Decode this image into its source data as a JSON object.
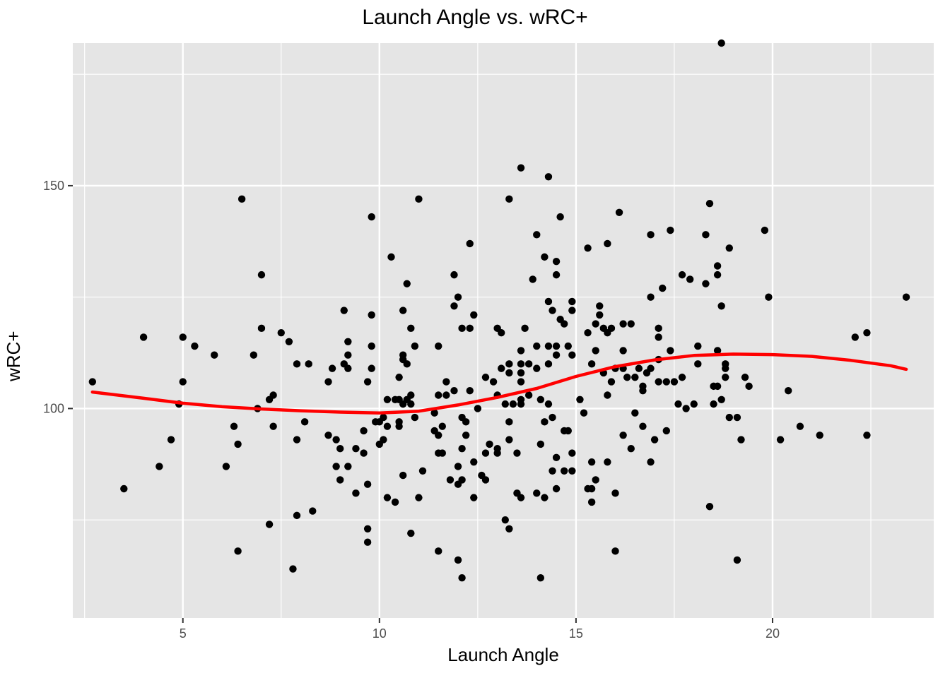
{
  "chart_data": {
    "type": "scatter",
    "title": "Launch Angle vs. wRC+",
    "xlabel": "Launch Angle",
    "ylabel": "wRC+",
    "xlim": [
      2.2,
      24.1
    ],
    "ylim": [
      53,
      182
    ],
    "x_ticks": [
      5,
      10,
      15,
      20
    ],
    "x_tick_labels": [
      "5",
      "10",
      "15",
      "20"
    ],
    "x_minor_ticks": [
      2.5,
      7.5,
      12.5,
      17.5,
      22.5
    ],
    "y_ticks": [
      100,
      150
    ],
    "y_tick_labels": [
      "100",
      "150"
    ],
    "y_minor_ticks": [
      75,
      125,
      175
    ],
    "grid": true,
    "point_color": "#000000",
    "smooth_color": "#ff0000",
    "panel_color": "#e5e5e5",
    "points": [
      [
        2.7,
        106
      ],
      [
        3.5,
        82
      ],
      [
        4.0,
        116
      ],
      [
        4.4,
        87
      ],
      [
        4.7,
        93
      ],
      [
        4.9,
        101
      ],
      [
        5.0,
        106
      ],
      [
        5.0,
        116
      ],
      [
        5.3,
        114
      ],
      [
        5.8,
        112
      ],
      [
        6.1,
        87
      ],
      [
        6.3,
        96
      ],
      [
        6.4,
        92
      ],
      [
        6.4,
        68
      ],
      [
        6.5,
        147
      ],
      [
        6.8,
        112
      ],
      [
        6.9,
        100
      ],
      [
        7.0,
        130
      ],
      [
        7.0,
        118
      ],
      [
        7.2,
        102
      ],
      [
        7.2,
        74
      ],
      [
        7.3,
        103
      ],
      [
        7.3,
        96
      ],
      [
        7.5,
        117
      ],
      [
        7.7,
        115
      ],
      [
        7.8,
        64
      ],
      [
        7.9,
        110
      ],
      [
        7.9,
        93
      ],
      [
        7.9,
        76
      ],
      [
        8.1,
        97
      ],
      [
        8.2,
        110
      ],
      [
        8.3,
        77
      ],
      [
        8.7,
        106
      ],
      [
        8.7,
        94
      ],
      [
        8.8,
        109
      ],
      [
        8.9,
        93
      ],
      [
        8.9,
        87
      ],
      [
        9.0,
        91
      ],
      [
        9.0,
        84
      ],
      [
        9.1,
        122
      ],
      [
        9.1,
        110
      ],
      [
        9.2,
        115
      ],
      [
        9.2,
        112
      ],
      [
        9.2,
        109
      ],
      [
        9.2,
        87
      ],
      [
        9.4,
        91
      ],
      [
        9.4,
        81
      ],
      [
        9.6,
        95
      ],
      [
        9.6,
        90
      ],
      [
        9.7,
        106
      ],
      [
        9.7,
        83
      ],
      [
        9.7,
        73
      ],
      [
        9.7,
        70
      ],
      [
        9.8,
        143
      ],
      [
        9.8,
        121
      ],
      [
        9.8,
        114
      ],
      [
        9.8,
        109
      ],
      [
        9.9,
        97
      ],
      [
        10.0,
        97
      ],
      [
        10.0,
        92
      ],
      [
        10.1,
        98
      ],
      [
        10.1,
        93
      ],
      [
        10.2,
        102
      ],
      [
        10.2,
        96
      ],
      [
        10.2,
        80
      ],
      [
        10.3,
        134
      ],
      [
        10.4,
        102
      ],
      [
        10.4,
        79
      ],
      [
        10.5,
        107
      ],
      [
        10.5,
        102
      ],
      [
        10.5,
        97
      ],
      [
        10.5,
        96
      ],
      [
        10.6,
        122
      ],
      [
        10.6,
        112
      ],
      [
        10.6,
        111
      ],
      [
        10.6,
        101
      ],
      [
        10.6,
        85
      ],
      [
        10.7,
        128
      ],
      [
        10.7,
        110
      ],
      [
        10.7,
        102
      ],
      [
        10.8,
        118
      ],
      [
        10.8,
        103
      ],
      [
        10.8,
        101
      ],
      [
        10.8,
        72
      ],
      [
        10.9,
        114
      ],
      [
        10.9,
        98
      ],
      [
        11.0,
        147
      ],
      [
        11.0,
        80
      ],
      [
        11.1,
        86
      ],
      [
        11.4,
        95
      ],
      [
        11.4,
        99
      ],
      [
        11.5,
        114
      ],
      [
        11.5,
        103
      ],
      [
        11.5,
        94
      ],
      [
        11.5,
        90
      ],
      [
        11.5,
        68
      ],
      [
        11.6,
        96
      ],
      [
        11.6,
        90
      ],
      [
        11.7,
        106
      ],
      [
        11.7,
        103
      ],
      [
        11.8,
        84
      ],
      [
        11.9,
        130
      ],
      [
        11.9,
        123
      ],
      [
        11.9,
        104
      ],
      [
        12.0,
        125
      ],
      [
        12.0,
        87
      ],
      [
        12.0,
        83
      ],
      [
        12.0,
        66
      ],
      [
        12.1,
        118
      ],
      [
        12.1,
        98
      ],
      [
        12.1,
        91
      ],
      [
        12.1,
        84
      ],
      [
        12.1,
        62
      ],
      [
        12.2,
        97
      ],
      [
        12.2,
        94
      ],
      [
        12.3,
        137
      ],
      [
        12.3,
        118
      ],
      [
        12.3,
        104
      ],
      [
        12.4,
        121
      ],
      [
        12.4,
        88
      ],
      [
        12.4,
        80
      ],
      [
        12.5,
        100
      ],
      [
        12.6,
        85
      ],
      [
        12.7,
        107
      ],
      [
        12.7,
        90
      ],
      [
        12.7,
        84
      ],
      [
        12.8,
        92
      ],
      [
        12.9,
        106
      ],
      [
        13.0,
        118
      ],
      [
        13.0,
        103
      ],
      [
        13.0,
        91
      ],
      [
        13.0,
        90
      ],
      [
        13.1,
        117
      ],
      [
        13.1,
        109
      ],
      [
        13.2,
        101
      ],
      [
        13.2,
        75
      ],
      [
        13.3,
        147
      ],
      [
        13.3,
        110
      ],
      [
        13.3,
        108
      ],
      [
        13.3,
        97
      ],
      [
        13.3,
        93
      ],
      [
        13.3,
        73
      ],
      [
        13.4,
        101
      ],
      [
        13.5,
        90
      ],
      [
        13.5,
        81
      ],
      [
        13.6,
        154
      ],
      [
        13.6,
        113
      ],
      [
        13.6,
        110
      ],
      [
        13.6,
        108
      ],
      [
        13.6,
        106
      ],
      [
        13.6,
        102
      ],
      [
        13.6,
        101
      ],
      [
        13.6,
        80
      ],
      [
        13.7,
        118
      ],
      [
        13.8,
        110
      ],
      [
        13.8,
        103
      ],
      [
        13.9,
        129
      ],
      [
        14.0,
        139
      ],
      [
        14.0,
        114
      ],
      [
        14.0,
        109
      ],
      [
        14.0,
        81
      ],
      [
        14.1,
        102
      ],
      [
        14.1,
        92
      ],
      [
        14.1,
        62
      ],
      [
        14.2,
        134
      ],
      [
        14.2,
        97
      ],
      [
        14.2,
        80
      ],
      [
        14.3,
        152
      ],
      [
        14.3,
        124
      ],
      [
        14.3,
        114
      ],
      [
        14.3,
        110
      ],
      [
        14.3,
        101
      ],
      [
        14.4,
        122
      ],
      [
        14.4,
        98
      ],
      [
        14.4,
        86
      ],
      [
        14.5,
        133
      ],
      [
        14.5,
        130
      ],
      [
        14.5,
        114
      ],
      [
        14.5,
        112
      ],
      [
        14.5,
        89
      ],
      [
        14.5,
        82
      ],
      [
        14.6,
        143
      ],
      [
        14.6,
        120
      ],
      [
        14.7,
        119
      ],
      [
        14.7,
        95
      ],
      [
        14.7,
        86
      ],
      [
        14.8,
        114
      ],
      [
        14.8,
        95
      ],
      [
        14.9,
        124
      ],
      [
        14.9,
        122
      ],
      [
        14.9,
        112
      ],
      [
        14.9,
        90
      ],
      [
        14.9,
        86
      ],
      [
        15.1,
        102
      ],
      [
        15.2,
        99
      ],
      [
        15.3,
        136
      ],
      [
        15.3,
        117
      ],
      [
        15.3,
        82
      ],
      [
        15.4,
        110
      ],
      [
        15.4,
        88
      ],
      [
        15.4,
        82
      ],
      [
        15.4,
        79
      ],
      [
        15.5,
        119
      ],
      [
        15.5,
        113
      ],
      [
        15.5,
        84
      ],
      [
        15.6,
        123
      ],
      [
        15.6,
        121
      ],
      [
        15.7,
        118
      ],
      [
        15.7,
        108
      ],
      [
        15.8,
        137
      ],
      [
        15.8,
        117
      ],
      [
        15.8,
        103
      ],
      [
        15.8,
        88
      ],
      [
        15.9,
        118
      ],
      [
        15.9,
        106
      ],
      [
        16.0,
        109
      ],
      [
        16.0,
        81
      ],
      [
        16.0,
        68
      ],
      [
        16.1,
        144
      ],
      [
        16.2,
        119
      ],
      [
        16.2,
        113
      ],
      [
        16.2,
        109
      ],
      [
        16.2,
        94
      ],
      [
        16.3,
        107
      ],
      [
        16.4,
        119
      ],
      [
        16.4,
        91
      ],
      [
        16.5,
        107
      ],
      [
        16.5,
        99
      ],
      [
        16.6,
        109
      ],
      [
        16.7,
        105
      ],
      [
        16.7,
        104
      ],
      [
        16.7,
        96
      ],
      [
        16.8,
        108
      ],
      [
        16.9,
        139
      ],
      [
        16.9,
        125
      ],
      [
        16.9,
        109
      ],
      [
        16.9,
        88
      ],
      [
        17.0,
        93
      ],
      [
        17.1,
        118
      ],
      [
        17.1,
        116
      ],
      [
        17.1,
        111
      ],
      [
        17.1,
        106
      ],
      [
        17.2,
        127
      ],
      [
        17.3,
        106
      ],
      [
        17.3,
        95
      ],
      [
        17.4,
        140
      ],
      [
        17.4,
        113
      ],
      [
        17.5,
        106
      ],
      [
        17.6,
        101
      ],
      [
        17.7,
        130
      ],
      [
        17.7,
        107
      ],
      [
        17.8,
        100
      ],
      [
        17.9,
        129
      ],
      [
        18.0,
        101
      ],
      [
        18.1,
        114
      ],
      [
        18.1,
        110
      ],
      [
        18.3,
        139
      ],
      [
        18.3,
        128
      ],
      [
        18.4,
        146
      ],
      [
        18.4,
        78
      ],
      [
        18.5,
        105
      ],
      [
        18.5,
        101
      ],
      [
        18.6,
        132
      ],
      [
        18.6,
        130
      ],
      [
        18.6,
        113
      ],
      [
        18.6,
        105
      ],
      [
        18.7,
        182
      ],
      [
        18.7,
        123
      ],
      [
        18.7,
        102
      ],
      [
        18.8,
        110
      ],
      [
        18.8,
        109
      ],
      [
        18.8,
        107
      ],
      [
        18.9,
        136
      ],
      [
        18.9,
        98
      ],
      [
        19.1,
        98
      ],
      [
        19.1,
        66
      ],
      [
        19.2,
        93
      ],
      [
        19.3,
        107
      ],
      [
        19.4,
        105
      ],
      [
        19.8,
        140
      ],
      [
        19.9,
        125
      ],
      [
        20.2,
        93
      ],
      [
        20.4,
        104
      ],
      [
        20.7,
        96
      ],
      [
        21.2,
        94
      ],
      [
        22.1,
        116
      ],
      [
        22.4,
        117
      ],
      [
        22.4,
        94
      ],
      [
        23.4,
        125
      ]
    ],
    "smooth_line": [
      [
        2.7,
        103.7
      ],
      [
        4.0,
        102.3
      ],
      [
        5.0,
        101.2
      ],
      [
        6.0,
        100.4
      ],
      [
        7.0,
        99.9
      ],
      [
        8.0,
        99.5
      ],
      [
        9.0,
        99.2
      ],
      [
        10.0,
        99.0
      ],
      [
        11.0,
        99.4
      ],
      [
        12.0,
        100.8
      ],
      [
        13.0,
        102.5
      ],
      [
        14.0,
        104.5
      ],
      [
        15.0,
        107.2
      ],
      [
        16.0,
        109.4
      ],
      [
        17.0,
        110.9
      ],
      [
        18.0,
        111.9
      ],
      [
        19.0,
        112.2
      ],
      [
        20.0,
        112.1
      ],
      [
        21.0,
        111.7
      ],
      [
        22.0,
        110.8
      ],
      [
        23.0,
        109.6
      ],
      [
        23.4,
        108.8
      ]
    ]
  }
}
